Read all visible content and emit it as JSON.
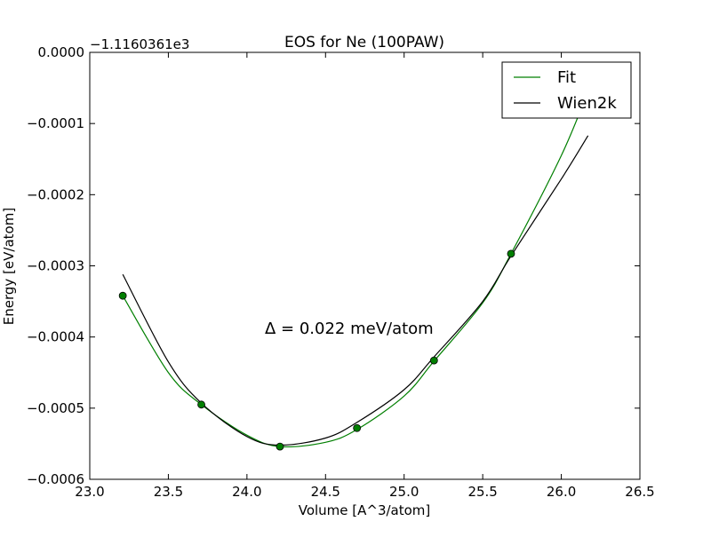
{
  "chart_data": {
    "type": "line",
    "title": "EOS for Ne (100PAW)",
    "xlabel": "Volume [A^3/atom]",
    "ylabel": "Energy [eV/atom]",
    "offset_label": "−1.1160361e3",
    "annotation": "Δ = 0.022 meV/atom",
    "xlim": [
      23.0,
      26.5
    ],
    "ylim": [
      -0.0006,
      0.0
    ],
    "xticks": [
      23.0,
      23.5,
      24.0,
      24.5,
      25.0,
      25.5,
      26.0,
      26.5
    ],
    "xtick_labels": [
      "23.0",
      "23.5",
      "24.0",
      "24.5",
      "25.0",
      "25.5",
      "26.0",
      "26.5"
    ],
    "yticks": [
      0.0,
      -0.0001,
      -0.0002,
      -0.0003,
      -0.0004,
      -0.0005,
      -0.0006
    ],
    "ytick_labels": [
      "0.0000",
      "−0.0001",
      "−0.0002",
      "−0.0003",
      "−0.0004",
      "−0.0005",
      "−0.0006"
    ],
    "grid": false,
    "legend_position": "top-right",
    "colors": {
      "fit": "#007f00",
      "wien2k": "#000000",
      "points": "#007f00"
    },
    "series": [
      {
        "name": "Fit",
        "kind": "line",
        "x": [
          23.21,
          23.5,
          23.71,
          24.0,
          24.21,
          24.5,
          24.7,
          25.0,
          25.19,
          25.5,
          25.68,
          26.0,
          26.17
        ],
        "y": [
          -0.000342,
          -0.00045,
          -0.000495,
          -0.000538,
          -0.000554,
          -0.000548,
          -0.00053,
          -0.000483,
          -0.000434,
          -0.000352,
          -0.000283,
          -0.000145,
          -5.5e-05
        ]
      },
      {
        "name": "Wien2k",
        "kind": "line",
        "x": [
          23.21,
          23.5,
          23.71,
          24.0,
          24.21,
          24.5,
          24.7,
          25.0,
          25.19,
          25.5,
          25.68,
          26.0,
          26.17
        ],
        "y": [
          -0.000312,
          -0.000435,
          -0.000493,
          -0.00054,
          -0.000552,
          -0.000542,
          -0.00052,
          -0.000474,
          -0.000428,
          -0.00035,
          -0.000286,
          -0.000178,
          -0.000117
        ]
      },
      {
        "name": "data points",
        "kind": "scatter",
        "x": [
          23.21,
          23.71,
          24.21,
          24.7,
          25.19,
          25.68
        ],
        "y": [
          -0.000342,
          -0.000495,
          -0.000554,
          -0.000528,
          -0.000433,
          -0.000283
        ]
      }
    ]
  }
}
